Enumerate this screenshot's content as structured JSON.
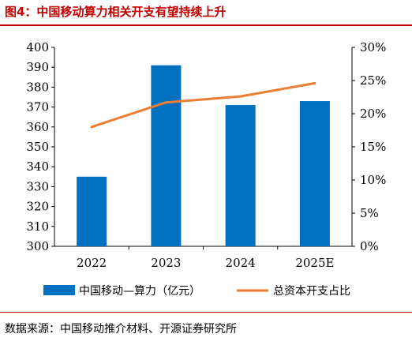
{
  "header": {
    "title": "图4：中国移动算力相关开支有望持续上升"
  },
  "chart_data": {
    "type": "bar+line",
    "categories": [
      "2022",
      "2023",
      "2024",
      "2025E"
    ],
    "series": [
      {
        "name": "中国移动—算力（亿元）",
        "type": "bar",
        "axis": "left",
        "values": [
          335,
          391,
          371,
          373
        ],
        "color": "#0070C0"
      },
      {
        "name": "总资本开支占比",
        "type": "line",
        "axis": "right",
        "values": [
          18.0,
          21.7,
          22.6,
          24.6
        ],
        "color": "#ED7D31"
      }
    ],
    "y_left": {
      "min": 300,
      "max": 400,
      "ticks": [
        "300",
        "310",
        "320",
        "330",
        "340",
        "350",
        "360",
        "370",
        "380",
        "390",
        "400"
      ]
    },
    "y_right": {
      "min": 0,
      "max": 30,
      "ticks": [
        "0%",
        "5%",
        "10%",
        "15%",
        "20%",
        "25%",
        "30%"
      ]
    },
    "grid": false,
    "legend_position": "bottom"
  },
  "footer": {
    "source": "数据来源：中国移动推介材料、开源证券研究所"
  }
}
